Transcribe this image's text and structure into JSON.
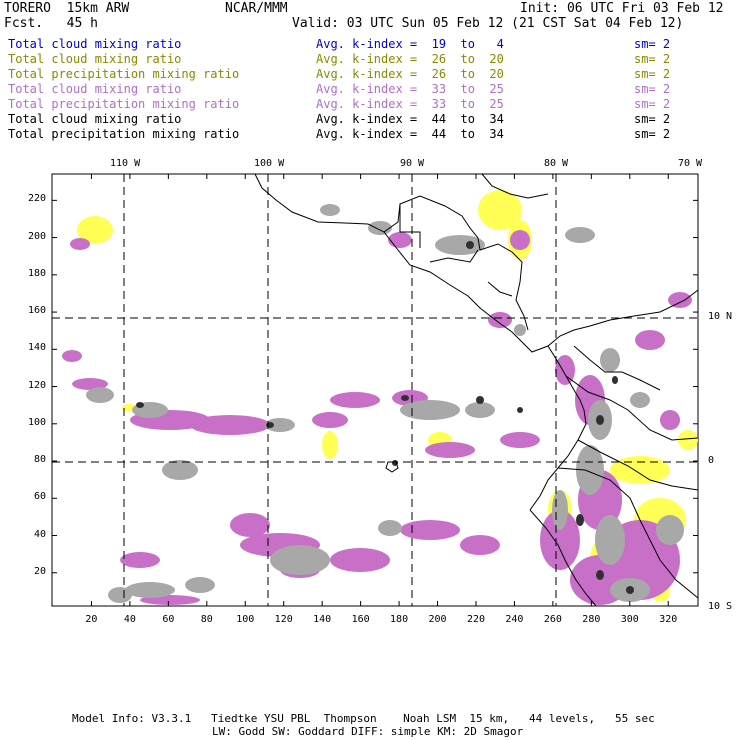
{
  "header": {
    "model": "TORERO  15km ARW",
    "fcst": "Fcst.   45 h",
    "org": "NCAR/MMM",
    "init": "Init: 06 UTC Fri 03 Feb 12",
    "valid": "Valid: 03 UTC Sun 05 Feb 12 (21 CST Sat 04 Feb 12)"
  },
  "legend": [
    {
      "field": "Total cloud mixing ratio",
      "kindex": "Avg. k-index =  19  to   4",
      "sm": "sm= 2",
      "color": "#0000cc"
    },
    {
      "field": "Total cloud mixing ratio",
      "kindex": "Avg. k-index =  26  to  20",
      "sm": "sm= 2",
      "color": "#8a8a00"
    },
    {
      "field": "Total precipitation mixing ratio",
      "kindex": "Avg. k-index =  26  to  20",
      "sm": "sm= 2",
      "color": "#8a8a00"
    },
    {
      "field": "Total cloud mixing ratio",
      "kindex": "Avg. k-index =  33  to  25",
      "sm": "sm= 2",
      "color": "#b070c8"
    },
    {
      "field": "Total precipitation mixing ratio",
      "kindex": "Avg. k-index =  33  to  25",
      "sm": "sm= 2",
      "color": "#b070c8"
    },
    {
      "field": "Total cloud mixing ratio",
      "kindex": "Avg. k-index =  44  to  34",
      "sm": "sm= 2",
      "color": "#000000"
    },
    {
      "field": "Total precipitation mixing ratio",
      "kindex": "Avg. k-index =  44  to  34",
      "sm": "sm= 2",
      "color": "#000000"
    }
  ],
  "map": {
    "lon_labels": [
      "110 W",
      "100 W",
      "90 W",
      "80 W",
      "70 W"
    ],
    "lat_labels": [
      "10 N",
      "0",
      "10 S"
    ],
    "y_ticks": [
      "220",
      "200",
      "180",
      "160",
      "140",
      "120",
      "100",
      "80",
      "60",
      "40",
      "20"
    ],
    "x_ticks": [
      "20",
      "40",
      "60",
      "80",
      "100",
      "120",
      "140",
      "160",
      "180",
      "200",
      "220",
      "240",
      "260",
      "280",
      "300",
      "320"
    ],
    "colors": {
      "cloud_low": "#ffff55",
      "cloud_mid": "#c870c8",
      "precip_high_light": "#a8a8a8",
      "precip_high_dark": "#303030",
      "coast": "#000000"
    }
  },
  "footer": {
    "line1": "Model Info: V3.3.1   Tiedtke YSU PBL  Thompson    Noah LSM  15 km,   44 levels,   55 sec",
    "line2": "LW: Godd SW: Goddard DIFF: simple KM: 2D Smagor"
  }
}
